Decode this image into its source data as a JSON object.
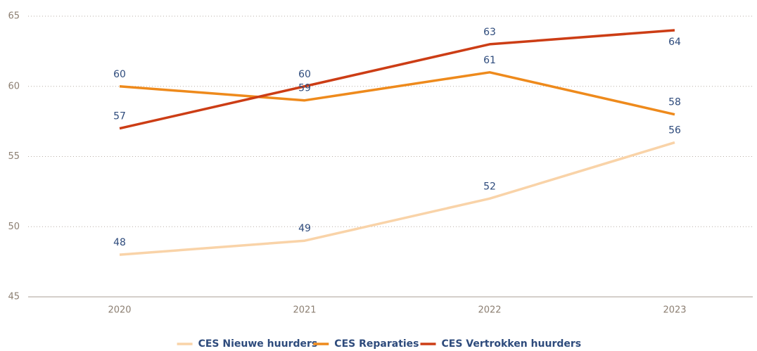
{
  "chart_data": {
    "type": "line",
    "categories": [
      "2020",
      "2021",
      "2022",
      "2023"
    ],
    "series": [
      {
        "name": "CES Nieuwe huurders",
        "color": "#f9d3a8",
        "values": [
          48,
          49,
          52,
          56
        ]
      },
      {
        "name": "CES Reparaties",
        "color": "#ee8a1c",
        "values": [
          60,
          59,
          61,
          58
        ]
      },
      {
        "name": "CES Vertrokken huurders",
        "color": "#cc3d15",
        "values": [
          57,
          60,
          63,
          64
        ]
      }
    ],
    "ylim": [
      45,
      65
    ],
    "yticks": [
      45,
      50,
      55,
      60,
      65
    ],
    "grid": true,
    "legend": "bottom"
  }
}
